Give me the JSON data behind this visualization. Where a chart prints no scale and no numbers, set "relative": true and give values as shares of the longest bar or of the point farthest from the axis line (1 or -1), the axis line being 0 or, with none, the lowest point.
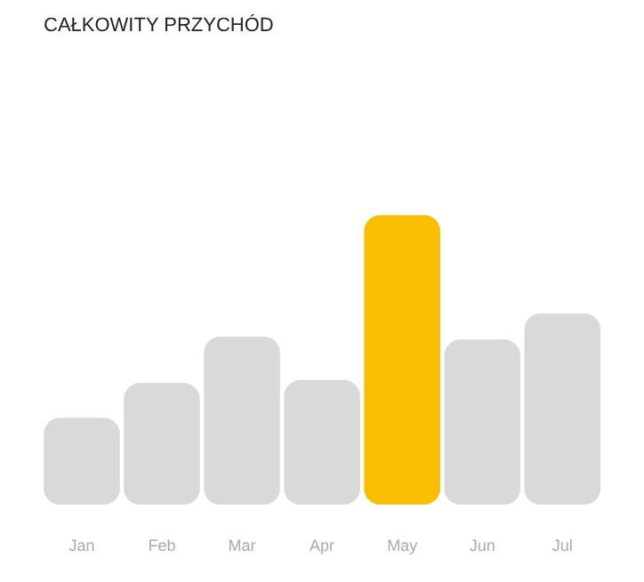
{
  "chart_data": {
    "type": "bar",
    "title": "CAŁKOWITY PRZYCHÓD",
    "relative": true,
    "categories": [
      "Jan",
      "Feb",
      "Mar",
      "Apr",
      "May",
      "Jun",
      "Jul"
    ],
    "values": [
      0.3,
      0.42,
      0.58,
      0.43,
      1,
      0.57,
      0.66
    ],
    "colors": [
      "#d9d9d9",
      "#d9d9d9",
      "#d9d9d9",
      "#d9d9d9",
      "#f9be00",
      "#d9d9d9",
      "#d9d9d9"
    ],
    "grid": false
  }
}
